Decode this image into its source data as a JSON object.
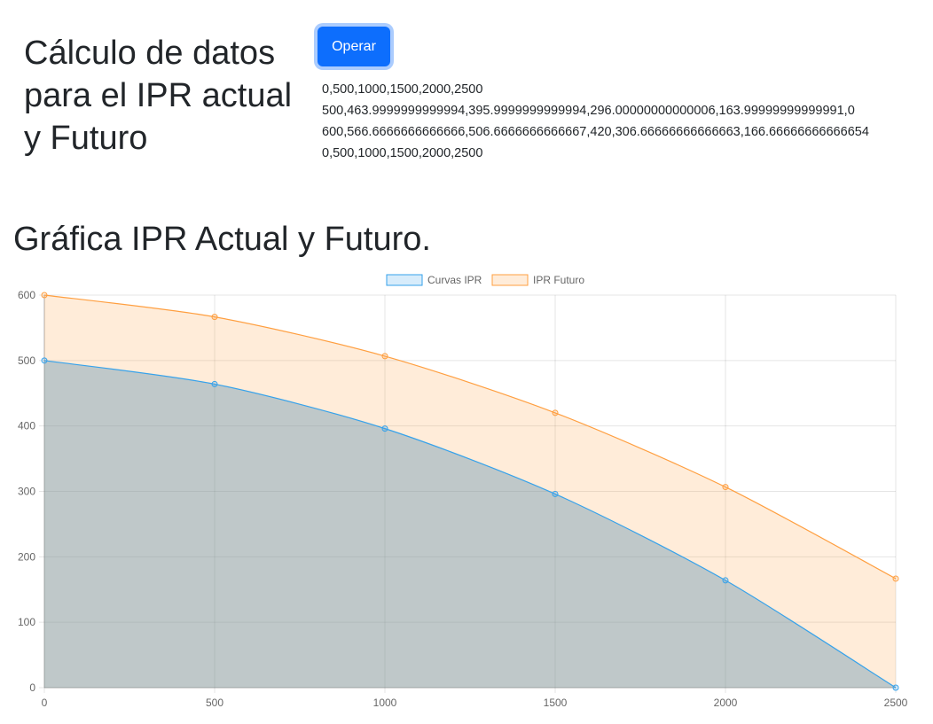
{
  "header": {
    "title": "Cálculo de datos para el IPR actual y Futuro",
    "operate_label": "Operar"
  },
  "output": {
    "lines": [
      "0,500,1000,1500,2000,2500",
      "500,463.9999999999994,395.9999999999994,296.00000000000006,163.99999999999991,0",
      "600,566.6666666666666,506.6666666666667,420,306.66666666666663,166.66666666666654",
      "0,500,1000,1500,2000,2500"
    ]
  },
  "chart_section": {
    "title": "Gráfica IPR Actual y Futuro."
  },
  "chart_data": {
    "type": "area",
    "x": [
      0,
      500,
      1000,
      1500,
      2000,
      2500
    ],
    "series": [
      {
        "name": "Curvas IPR",
        "values": [
          500,
          463.9999999999994,
          395.9999999999994,
          296.00000000000006,
          163.99999999999991,
          0
        ],
        "color": "#36a2eb",
        "fill": "rgba(54,162,235,0.2)"
      },
      {
        "name": "IPR Futuro",
        "values": [
          600,
          566.6666666666666,
          506.6666666666667,
          420,
          306.66666666666663,
          166.66666666666654
        ],
        "color": "#ff9f40",
        "fill": "rgba(255,159,64,0.2)"
      }
    ],
    "x_ticks": [
      "0",
      "500",
      "1000",
      "1500",
      "2000",
      "2500"
    ],
    "y_ticks": [
      "0",
      "100",
      "200",
      "300",
      "400",
      "500",
      "600"
    ],
    "xlim": [
      0,
      2500
    ],
    "ylim": [
      0,
      600
    ],
    "grid": true,
    "legend": "top-center",
    "title": "",
    "xlabel": "",
    "ylabel": ""
  }
}
